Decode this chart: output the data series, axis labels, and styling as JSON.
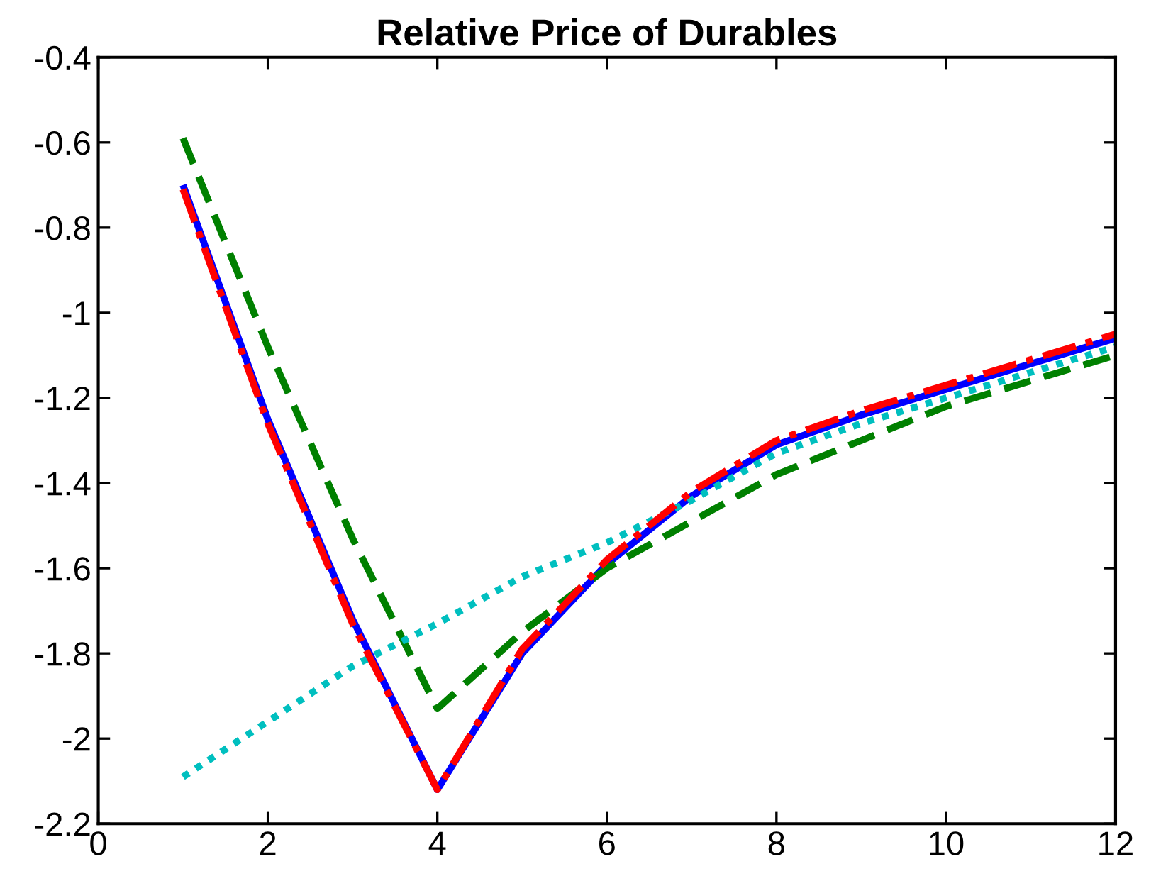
{
  "chart_data": {
    "type": "line",
    "title": "Relative Price of Durables",
    "x": [
      1,
      2,
      3,
      4,
      5,
      6,
      7,
      8,
      9,
      10,
      11,
      12
    ],
    "series": [
      {
        "color": "#0000ff",
        "line_style": "solid",
        "values": [
          -0.7,
          -1.25,
          -1.72,
          -2.12,
          -1.8,
          -1.59,
          -1.43,
          -1.31,
          -1.24,
          -1.18,
          -1.12,
          -1.06
        ]
      },
      {
        "color": "#008000",
        "line_style": "dashed",
        "values": [
          -0.59,
          -1.08,
          -1.53,
          -1.93,
          -1.75,
          -1.6,
          -1.49,
          -1.38,
          -1.3,
          -1.22,
          -1.16,
          -1.1
        ]
      },
      {
        "color": "#00bfbf",
        "line_style": "dotted",
        "values": [
          -2.09,
          -1.96,
          -1.83,
          -1.73,
          -1.62,
          -1.54,
          -1.44,
          -1.33,
          -1.26,
          -1.2,
          -1.14,
          -1.08
        ]
      },
      {
        "color": "#ff0000",
        "line_style": "dashdot",
        "values": [
          -0.71,
          -1.26,
          -1.73,
          -2.12,
          -1.79,
          -1.58,
          -1.42,
          -1.3,
          -1.23,
          -1.17,
          -1.11,
          -1.05
        ]
      }
    ],
    "xlim": [
      0,
      12
    ],
    "xticks": [
      0,
      2,
      4,
      6,
      8,
      10,
      12
    ],
    "ylim": [
      -2.2,
      -0.4
    ],
    "yticks": [
      -2.2,
      -2,
      -1.8,
      -1.6,
      -1.4,
      -1.2,
      -1,
      -0.8,
      -0.6,
      -0.4
    ],
    "grid": false,
    "marker": "none"
  }
}
